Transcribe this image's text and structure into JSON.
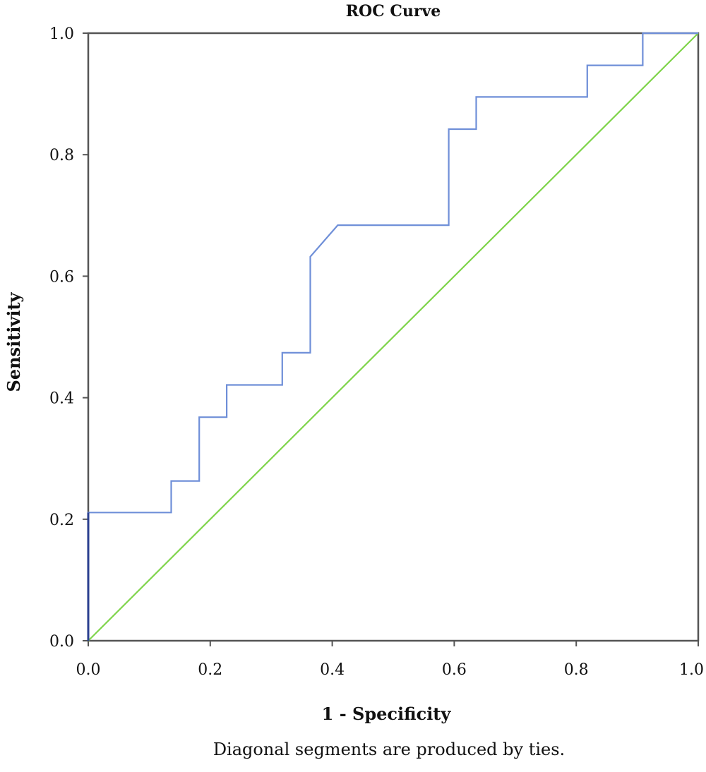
{
  "chart_data": {
    "type": "line",
    "title": "ROC Curve",
    "xlabel": "1 - Specificity",
    "ylabel": "Sensitivity",
    "note": "Diagonal segments are produced by ties.",
    "xlim": [
      0,
      1
    ],
    "ylim": [
      0,
      1
    ],
    "x_ticks": [
      "0.0",
      "0.2",
      "0.4",
      "0.6",
      "0.8",
      "1.0"
    ],
    "y_ticks": [
      "0.0",
      "0.2",
      "0.4",
      "0.6",
      "0.8",
      "1.0"
    ],
    "grid": false,
    "series": [
      {
        "color": "#6f8fd8",
        "points": [
          [
            0,
            0
          ],
          [
            0,
            0.211
          ],
          [
            0.136,
            0.211
          ],
          [
            0.136,
            0.263
          ],
          [
            0.182,
            0.263
          ],
          [
            0.182,
            0.368
          ],
          [
            0.227,
            0.368
          ],
          [
            0.227,
            0.421
          ],
          [
            0.318,
            0.421
          ],
          [
            0.318,
            0.474
          ],
          [
            0.364,
            0.474
          ],
          [
            0.364,
            0.632
          ],
          [
            0.409,
            0.684
          ],
          [
            0.591,
            0.684
          ],
          [
            0.591,
            0.842
          ],
          [
            0.636,
            0.842
          ],
          [
            0.636,
            0.895
          ],
          [
            0.818,
            0.895
          ],
          [
            0.818,
            0.947
          ],
          [
            0.909,
            0.947
          ],
          [
            0.909,
            1.0
          ],
          [
            1.0,
            1.0
          ]
        ]
      },
      {
        "color": "#7fd44b",
        "points": [
          [
            0,
            0
          ],
          [
            1,
            1
          ]
        ]
      }
    ]
  }
}
